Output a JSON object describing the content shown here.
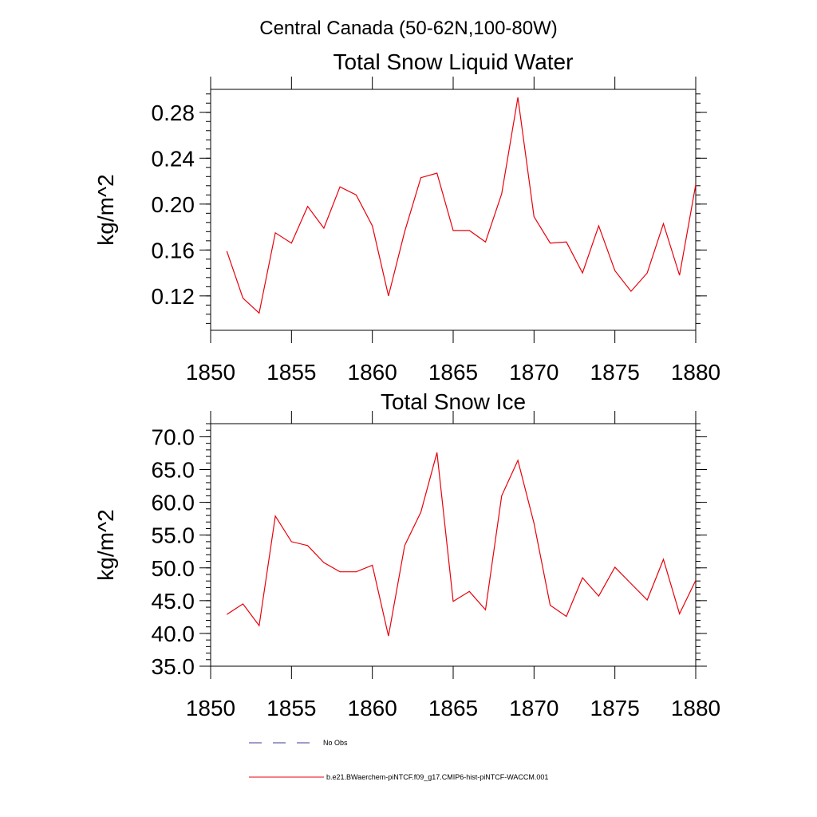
{
  "figure": {
    "main_title": "Central Canada (50-62N,100-80W)"
  },
  "chart_data": [
    {
      "type": "line",
      "title": "Total Snow Liquid Water",
      "xlabel": "",
      "ylabel": "kg/m^2",
      "xlim": [
        1850,
        1880
      ],
      "ylim": [
        0.09,
        0.3
      ],
      "x_ticks": [
        1850,
        1855,
        1860,
        1865,
        1870,
        1875,
        1880
      ],
      "y_ticks": [
        0.12,
        0.16,
        0.2,
        0.24,
        0.28
      ],
      "y_tick_labels": [
        "0.12",
        "0.16",
        "0.20",
        "0.24",
        "0.28"
      ],
      "grid": false,
      "series": [
        {
          "name": "b.e21.BWaerchem-piNTCF.f09_g17.CMIP6-hist-piNTCF-WACCM.001",
          "color": "#e8000b",
          "x": [
            1851,
            1852,
            1853,
            1854,
            1855,
            1856,
            1857,
            1858,
            1859,
            1860,
            1861,
            1862,
            1863,
            1864,
            1865,
            1866,
            1867,
            1868,
            1869,
            1870,
            1871,
            1872,
            1873,
            1874,
            1875,
            1876,
            1877,
            1878,
            1879,
            1880
          ],
          "y": [
            0.159,
            0.118,
            0.105,
            0.175,
            0.166,
            0.198,
            0.179,
            0.215,
            0.208,
            0.181,
            0.12,
            0.176,
            0.223,
            0.227,
            0.177,
            0.177,
            0.167,
            0.209,
            0.293,
            0.189,
            0.166,
            0.167,
            0.14,
            0.181,
            0.142,
            0.124,
            0.14,
            0.183,
            0.138,
            0.217
          ]
        }
      ]
    },
    {
      "type": "line",
      "title": "Total Snow Ice",
      "xlabel": "",
      "ylabel": "kg/m^2",
      "xlim": [
        1850,
        1880
      ],
      "ylim": [
        35.0,
        72.0
      ],
      "x_ticks": [
        1850,
        1855,
        1860,
        1865,
        1870,
        1875,
        1880
      ],
      "y_ticks": [
        35,
        40,
        45,
        50,
        55,
        60,
        65,
        70
      ],
      "y_tick_labels": [
        "35.0",
        "40.0",
        "45.0",
        "50.0",
        "55.0",
        "60.0",
        "65.0",
        "70.0"
      ],
      "grid": false,
      "series": [
        {
          "name": "b.e21.BWaerchem-piNTCF.f09_g17.CMIP6-hist-piNTCF-WACCM.001",
          "color": "#e8000b",
          "x": [
            1851,
            1852,
            1853,
            1854,
            1855,
            1856,
            1857,
            1858,
            1859,
            1860,
            1861,
            1862,
            1863,
            1864,
            1865,
            1866,
            1867,
            1868,
            1869,
            1870,
            1871,
            1872,
            1873,
            1874,
            1875,
            1876,
            1877,
            1878,
            1879,
            1880
          ],
          "y": [
            42.9,
            44.5,
            41.2,
            57.9,
            54.0,
            53.4,
            50.8,
            49.4,
            49.4,
            50.4,
            39.6,
            53.4,
            58.5,
            67.6,
            44.9,
            46.4,
            43.6,
            61.0,
            66.4,
            56.8,
            44.3,
            42.6,
            48.5,
            45.7,
            50.1,
            47.6,
            45.1,
            51.3,
            43.0,
            48.1
          ]
        }
      ]
    }
  ],
  "legend": {
    "placement": "bottom",
    "entries": [
      {
        "label": "No Obs",
        "style": "dashed",
        "color": "#3b3b8f"
      },
      {
        "label": "b.e21.BWaerchem-piNTCF.f09_g17.CMIP6-hist-piNTCF-WACCM.001",
        "style": "solid",
        "color": "#e8000b"
      }
    ]
  }
}
